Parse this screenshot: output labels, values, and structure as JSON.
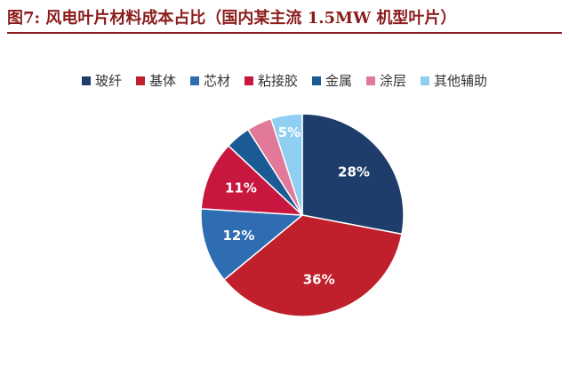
{
  "chart_data": {
    "type": "pie",
    "title": "图7: 风电叶片材料成本占比（国内某主流 1.5MW 机型叶片）",
    "categories": [
      "玻纤",
      "基体",
      "芯材",
      "粘接胶",
      "金属",
      "涂层",
      "其他辅助"
    ],
    "values": [
      28,
      36,
      12,
      11,
      4,
      4,
      5
    ],
    "value_labels": [
      "28%",
      "36%",
      "12%",
      "11%",
      null,
      null,
      "5%"
    ],
    "colors": [
      "#1f3d6b",
      "#c0202c",
      "#2f6db2",
      "#c8173f",
      "#1c5a96",
      "#e07a98",
      "#8fcff2"
    ],
    "legend": "top"
  }
}
